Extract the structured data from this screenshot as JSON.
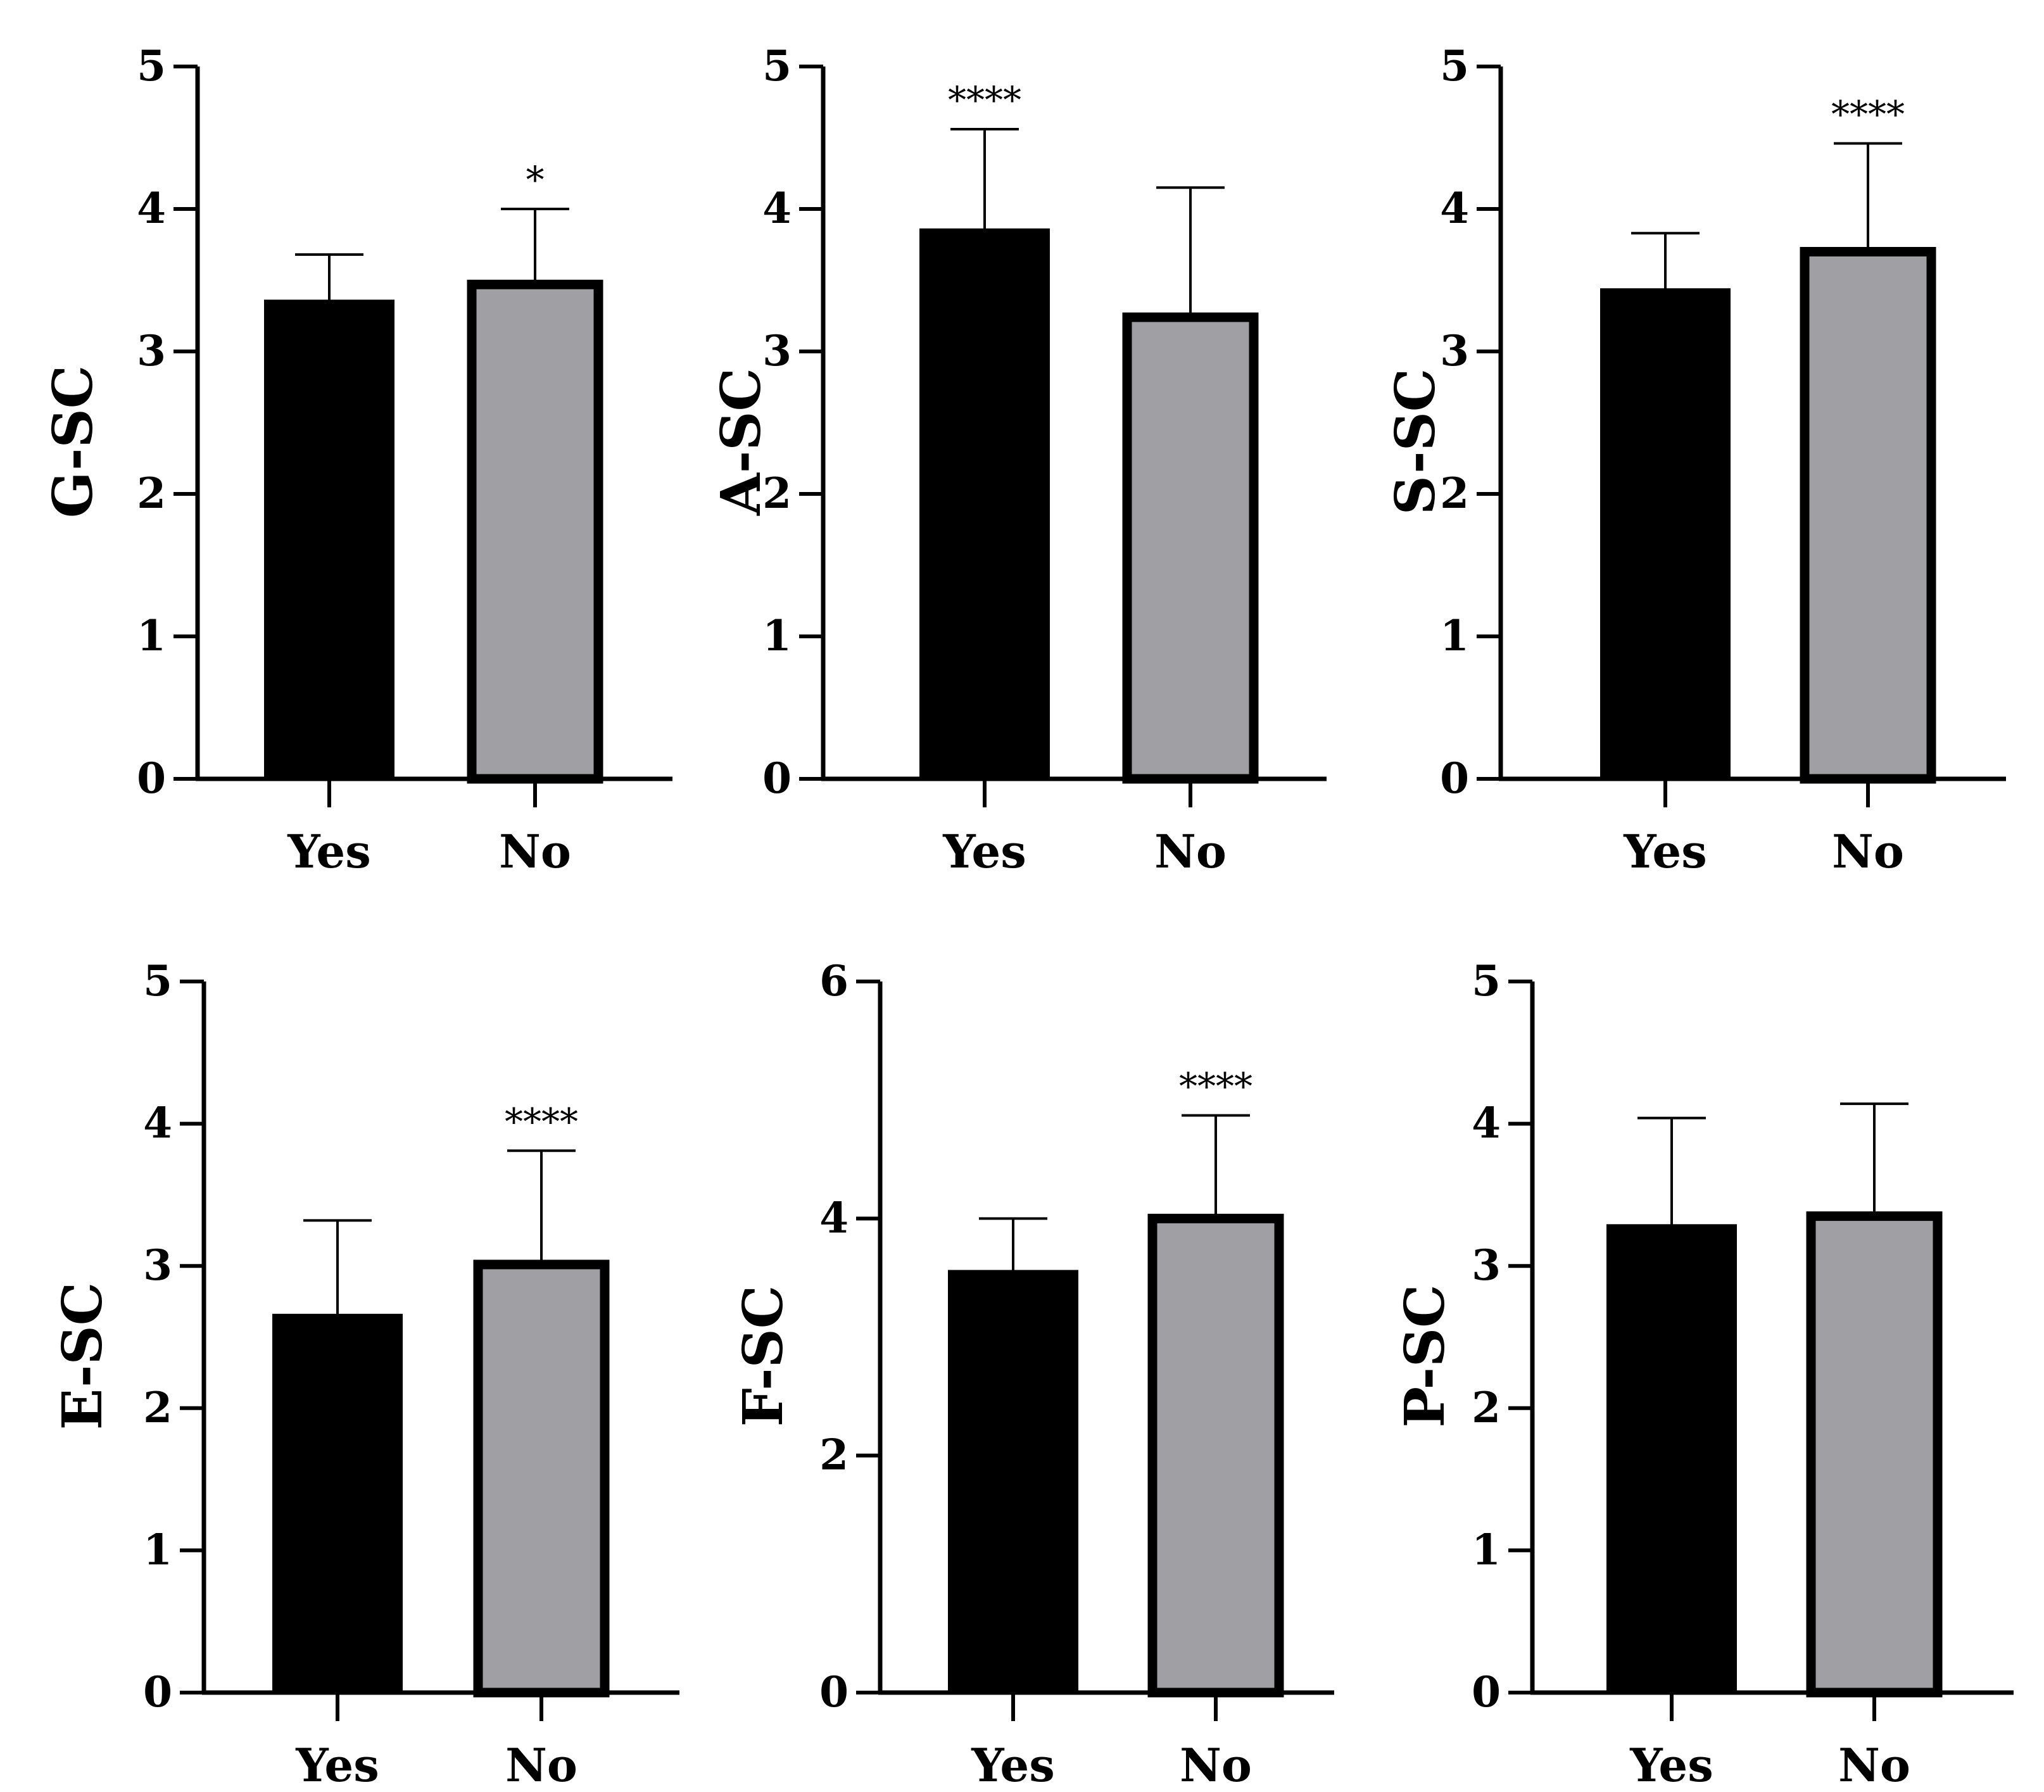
{
  "colors": {
    "yes_fill": "#000000",
    "no_fill": "#a09fa3",
    "outline": "#000000"
  },
  "chart_data": [
    {
      "type": "bar",
      "ylabel": "G-SC",
      "categories": [
        "Yes",
        "No"
      ],
      "values": [
        3.35,
        3.47
      ],
      "error_upper": [
        3.68,
        4.0
      ],
      "significance": [
        "",
        "*"
      ],
      "ylim": [
        0,
        5
      ],
      "yticks": [
        "0",
        "1",
        "2",
        "3",
        "4",
        "5"
      ]
    },
    {
      "type": "bar",
      "ylabel": "A-SC",
      "categories": [
        "Yes",
        "No"
      ],
      "values": [
        3.85,
        3.24
      ],
      "error_upper": [
        4.56,
        4.15
      ],
      "significance": [
        "****",
        ""
      ],
      "ylim": [
        0,
        5
      ],
      "yticks": [
        "0",
        "1",
        "2",
        "3",
        "4",
        "5"
      ]
    },
    {
      "type": "bar",
      "ylabel": "S-SC",
      "categories": [
        "Yes",
        "No"
      ],
      "values": [
        3.43,
        3.7
      ],
      "error_upper": [
        3.83,
        4.46
      ],
      "significance": [
        "",
        "****"
      ],
      "ylim": [
        0,
        5
      ],
      "yticks": [
        "0",
        "1",
        "2",
        "3",
        "4",
        "5"
      ]
    },
    {
      "type": "bar",
      "ylabel": "E-SC",
      "categories": [
        "Yes",
        "No"
      ],
      "values": [
        2.65,
        3.01
      ],
      "error_upper": [
        3.32,
        3.81
      ],
      "significance": [
        "",
        "****"
      ],
      "ylim": [
        0,
        5
      ],
      "yticks": [
        "0",
        "1",
        "2",
        "3",
        "4",
        "5"
      ]
    },
    {
      "type": "bar",
      "ylabel": "F-SC",
      "categories": [
        "Yes",
        "No"
      ],
      "values": [
        3.55,
        4.0
      ],
      "error_upper": [
        4.0,
        4.87
      ],
      "significance": [
        "",
        "****"
      ],
      "ylim": [
        0,
        6
      ],
      "yticks": [
        "0",
        "2",
        "4",
        "6"
      ]
    },
    {
      "type": "bar",
      "ylabel": "P-SC",
      "categories": [
        "Yes",
        "No"
      ],
      "values": [
        3.28,
        3.35
      ],
      "error_upper": [
        4.04,
        4.14
      ],
      "significance": [
        "",
        ""
      ],
      "ylim": [
        0,
        5
      ],
      "yticks": [
        "0",
        "1",
        "2",
        "3",
        "4",
        "5"
      ]
    }
  ]
}
